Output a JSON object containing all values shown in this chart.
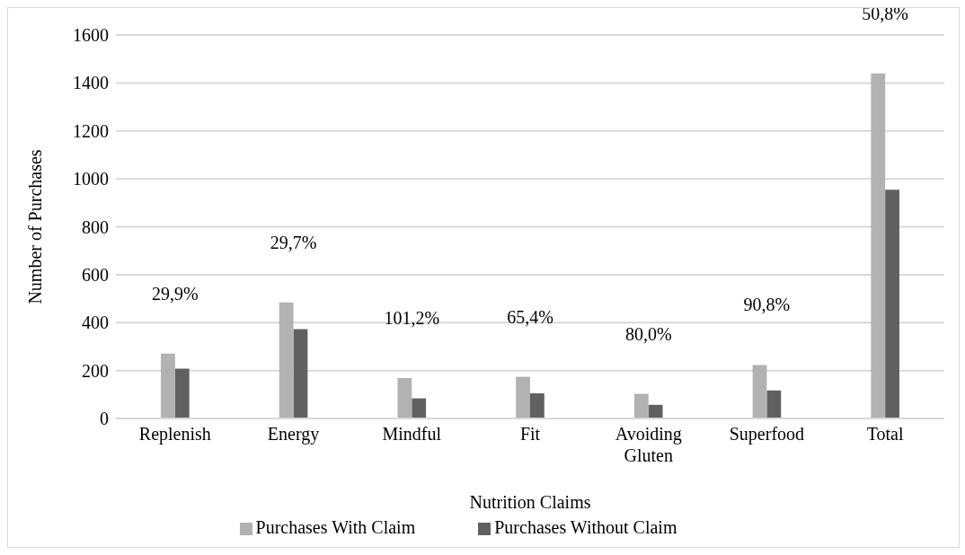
{
  "chart_data": {
    "type": "bar",
    "ylabel": "Number of Purchases",
    "xlabel": "Nutrition Claims",
    "categories": [
      "Replenish",
      "Energy",
      "Mindful",
      "Fit",
      "Avoiding Gluten",
      "Superfood",
      "Total"
    ],
    "series": [
      {
        "name": "Purchases Without Claim",
        "color": "#606060",
        "values": [
          208,
          373,
          84,
          105,
          57,
          117,
          955
        ]
      },
      {
        "name": "Purchases With Claim",
        "color": "#b2b2b2",
        "values": [
          271,
          484,
          169,
          174,
          103,
          223,
          1440
        ]
      }
    ],
    "ylim": [
      0,
      1600
    ],
    "yticks": [
      0,
      200,
      400,
      600,
      800,
      1000,
      1200,
      1400,
      1600
    ],
    "grid": "y",
    "legend": "bottom",
    "annotations": [
      {
        "text": "29,9%",
        "x": "Replenish",
        "y": 271
      },
      {
        "text": "29,7%",
        "x": "Energy",
        "y": 484
      },
      {
        "text": "101,2%",
        "x": "Mindful",
        "y": 169
      },
      {
        "text": "65,4%",
        "x": "Fit",
        "y": 174
      },
      {
        "text": "80,0%",
        "x": "Avoiding Gluten",
        "y": 103
      },
      {
        "text": "90,8%",
        "x": "Superfood",
        "y": 223
      },
      {
        "text": "50,8%",
        "x": "Total",
        "y": 1440
      }
    ]
  }
}
